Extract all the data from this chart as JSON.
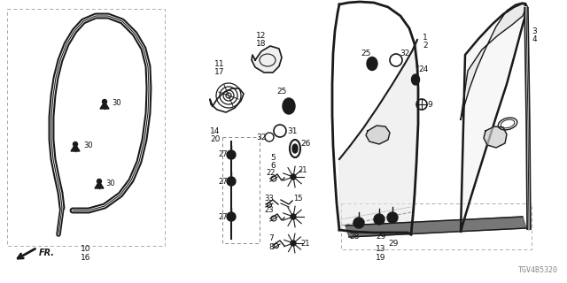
{
  "bg_color": "#ffffff",
  "part_id": "TGV4B5320",
  "fig_width": 6.4,
  "fig_height": 3.2,
  "dpi": 100
}
